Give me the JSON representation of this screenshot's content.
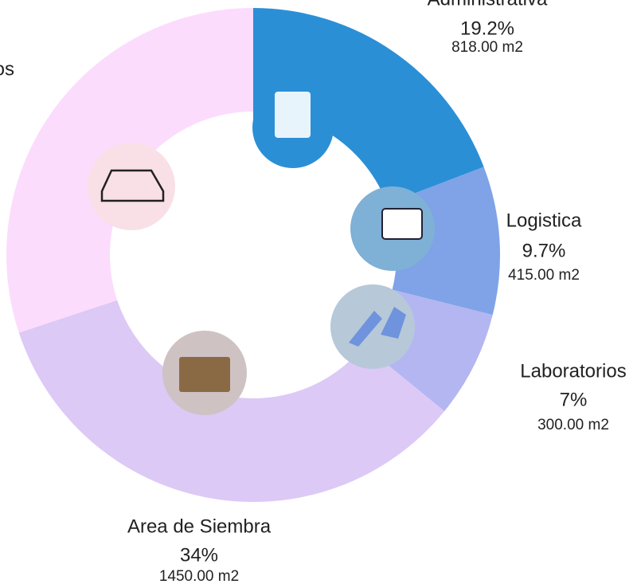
{
  "chart_data": {
    "type": "pie",
    "categories": [
      "Administrativa",
      "Logistica",
      "Laboratorios",
      "Area de Siembra",
      "os"
    ],
    "values": [
      19.2,
      9.7,
      7,
      34,
      30.1
    ],
    "value_labels": [
      "19.2%",
      "9.7%",
      "7%",
      "34%",
      null
    ],
    "area_labels": [
      "818.00 m2",
      "415.00 m2",
      "300.00 m2",
      "1450.00 m2",
      null
    ],
    "colors": [
      "#2b8fd6",
      "#7fa3e6",
      "#b4b6f1",
      "#dcc9f6",
      "#fcdcfc"
    ]
  }
}
